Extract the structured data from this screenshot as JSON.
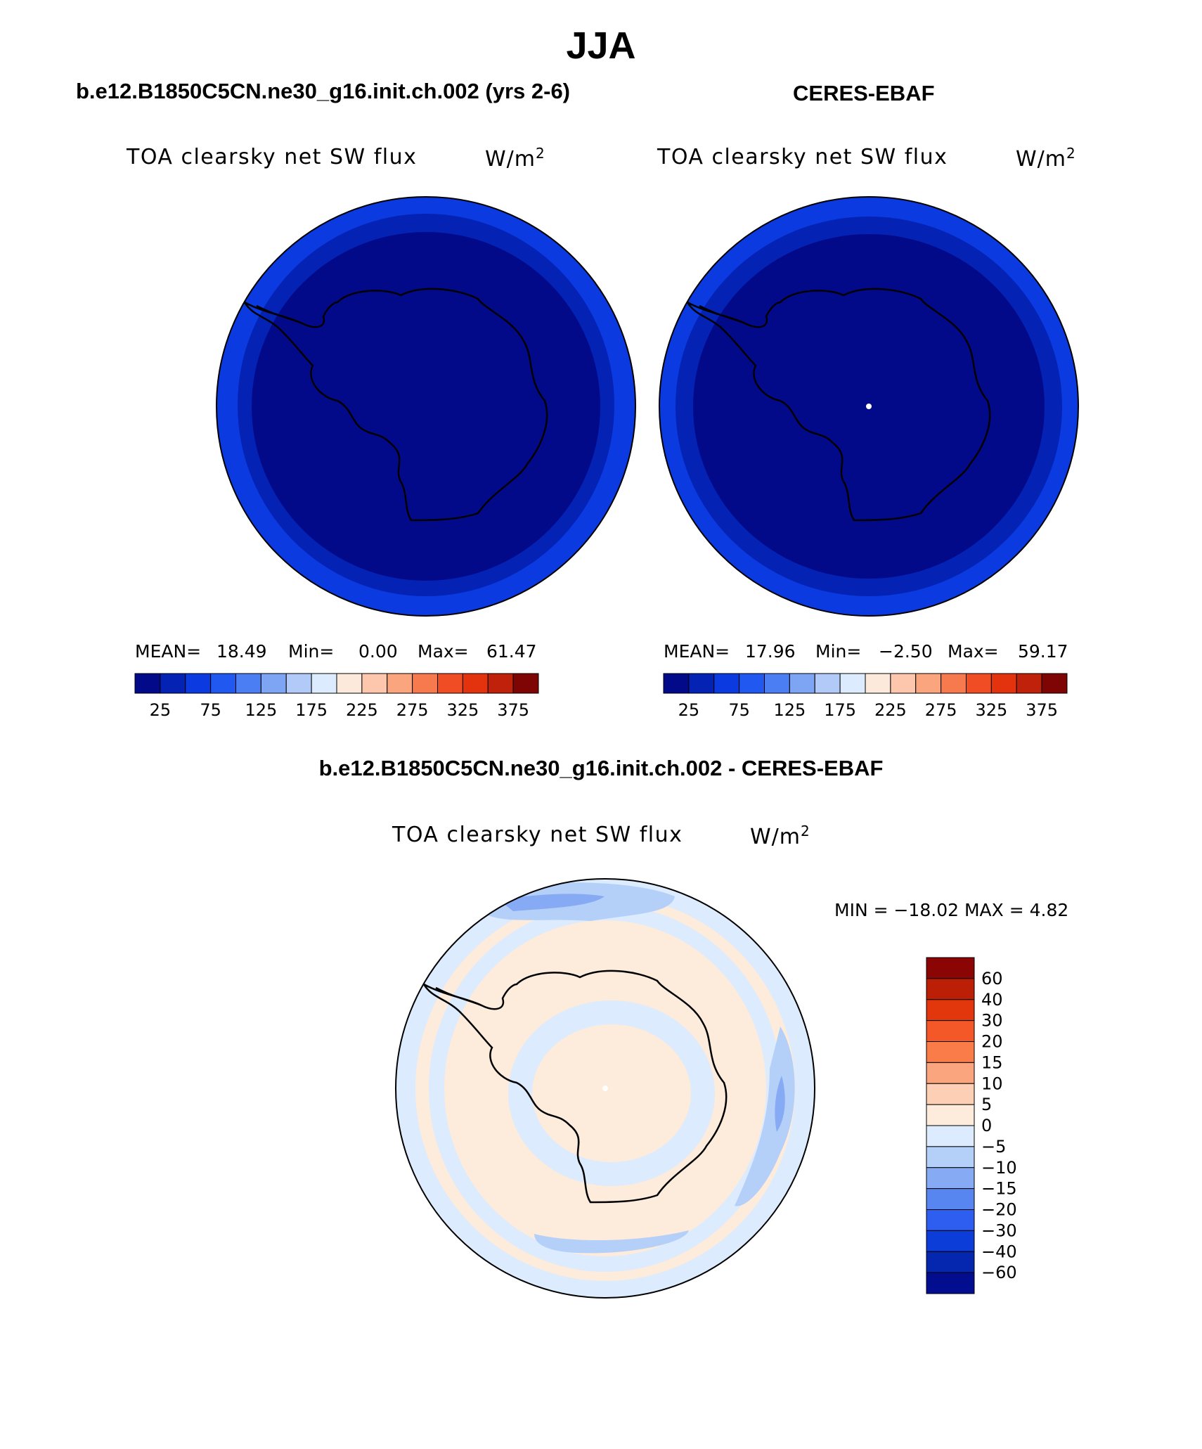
{
  "title": "JJA",
  "panels": [
    {
      "id": "model",
      "heading": "b.e12.B1850C5CN.ne30_g16.init.ch.002 (yrs 2-6)",
      "variable": "TOA clearsky net SW flux",
      "units_base": "W/m",
      "units_exp": "2",
      "mean_label": "MEAN=",
      "mean_value": "18.49",
      "min_label": "Min=",
      "min_value": "0.00",
      "max_label": "Max=",
      "max_value": "61.47"
    },
    {
      "id": "obs",
      "heading": "CERES-EBAF",
      "variable": "TOA clearsky net SW flux",
      "units_base": "W/m",
      "units_exp": "2",
      "mean_label": "MEAN=",
      "mean_value": "17.96",
      "min_label": "Min=",
      "min_value": "−2.50",
      "max_label": "Max=",
      "max_value": "59.17"
    }
  ],
  "difference": {
    "heading": "b.e12.B1850C5CN.ne30_g16.init.ch.002 - CERES-EBAF",
    "variable": "TOA clearsky net SW flux",
    "units_base": "W/m",
    "units_exp": "2",
    "minmax_text": "MIN = −18.02 MAX =    4.82"
  },
  "colorbar_ticks": [
    "25",
    "75",
    "125",
    "175",
    "225",
    "275",
    "325",
    "375"
  ],
  "colorbar_colors": [
    "#030a8a",
    "#0422b4",
    "#0a3ae0",
    "#2058f0",
    "#4a7ef2",
    "#7ea4f4",
    "#b2caf8",
    "#dcebfd",
    "#fde9db",
    "#fcc7ac",
    "#fba57e",
    "#f7794e",
    "#f04d24",
    "#e2330e",
    "#bf210a",
    "#7f0505"
  ],
  "diff_levels": [
    "60",
    "40",
    "30",
    "20",
    "15",
    "10",
    "5",
    "0",
    "−5",
    "−10",
    "−15",
    "−20",
    "−30",
    "−40",
    "−60"
  ],
  "diff_colors": [
    "#8c0505",
    "#bb2006",
    "#e2360c",
    "#f55828",
    "#fa7c48",
    "#fba57e",
    "#fdcfb4",
    "#fdebdb",
    "#dcebfd",
    "#b4d0f8",
    "#86aaf4",
    "#5786f0",
    "#2d5ef0",
    "#0c3dd8",
    "#0527b0",
    "#030d8f"
  ],
  "map_colors": {
    "deep_blue": "#030a8a",
    "ring_blue": "#0422b4",
    "outer_blue": "#0a3ae0",
    "diff_bg": "#fdebdb",
    "diff_light": "#dcebfd",
    "diff_mid": "#b4d0f8",
    "diff_strong": "#86aaf4"
  },
  "map_data": {
    "projection": "polar stereographic",
    "region": "Antarctica / Southern Ocean"
  }
}
